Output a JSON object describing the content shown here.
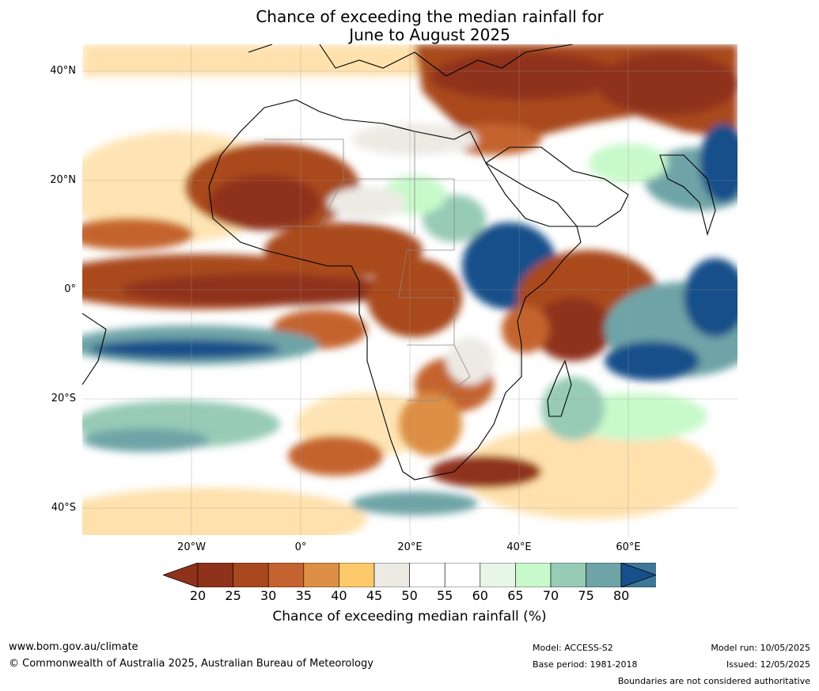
{
  "title_line1": "Chance of exceeding the median rainfall for",
  "title_line2": "June to August 2025",
  "lat_labels": [
    "40°N",
    "20°N",
    "0°",
    "20°S",
    "40°S"
  ],
  "lon_labels": [
    "20°W",
    "0°",
    "20°E",
    "40°E",
    "60°E"
  ],
  "colorbar": {
    "ticks": [
      "20",
      "25",
      "30",
      "35",
      "40",
      "45",
      "50",
      "55",
      "60",
      "65",
      "70",
      "75",
      "80"
    ],
    "colors": [
      "#8f321c",
      "#a9481f",
      "#c4632f",
      "#dd8f45",
      "#fec96a",
      "#edeae4",
      "#ffffff",
      "#ffffff",
      "#e8f6e8",
      "#c8f9cb",
      "#97cbb6",
      "#6ea4a7",
      "#3f7799"
    ],
    "under_color": "#8f321c",
    "over_color": "#15508a",
    "label": "Chance of exceeding median rainfall (%)"
  },
  "footer": {
    "website": "www.bom.gov.au/climate",
    "copyright": "© Commonwealth of Australia 2025, Australian Bureau of Meteorology",
    "model": "Model: ACCESS-S2",
    "base_period": "Base period: 1981-2018",
    "model_run": "Model run: 10/05/2025",
    "issued": "Issued: 12/05/2025",
    "disclaimer": "Boundaries are not considered authoritative"
  }
}
